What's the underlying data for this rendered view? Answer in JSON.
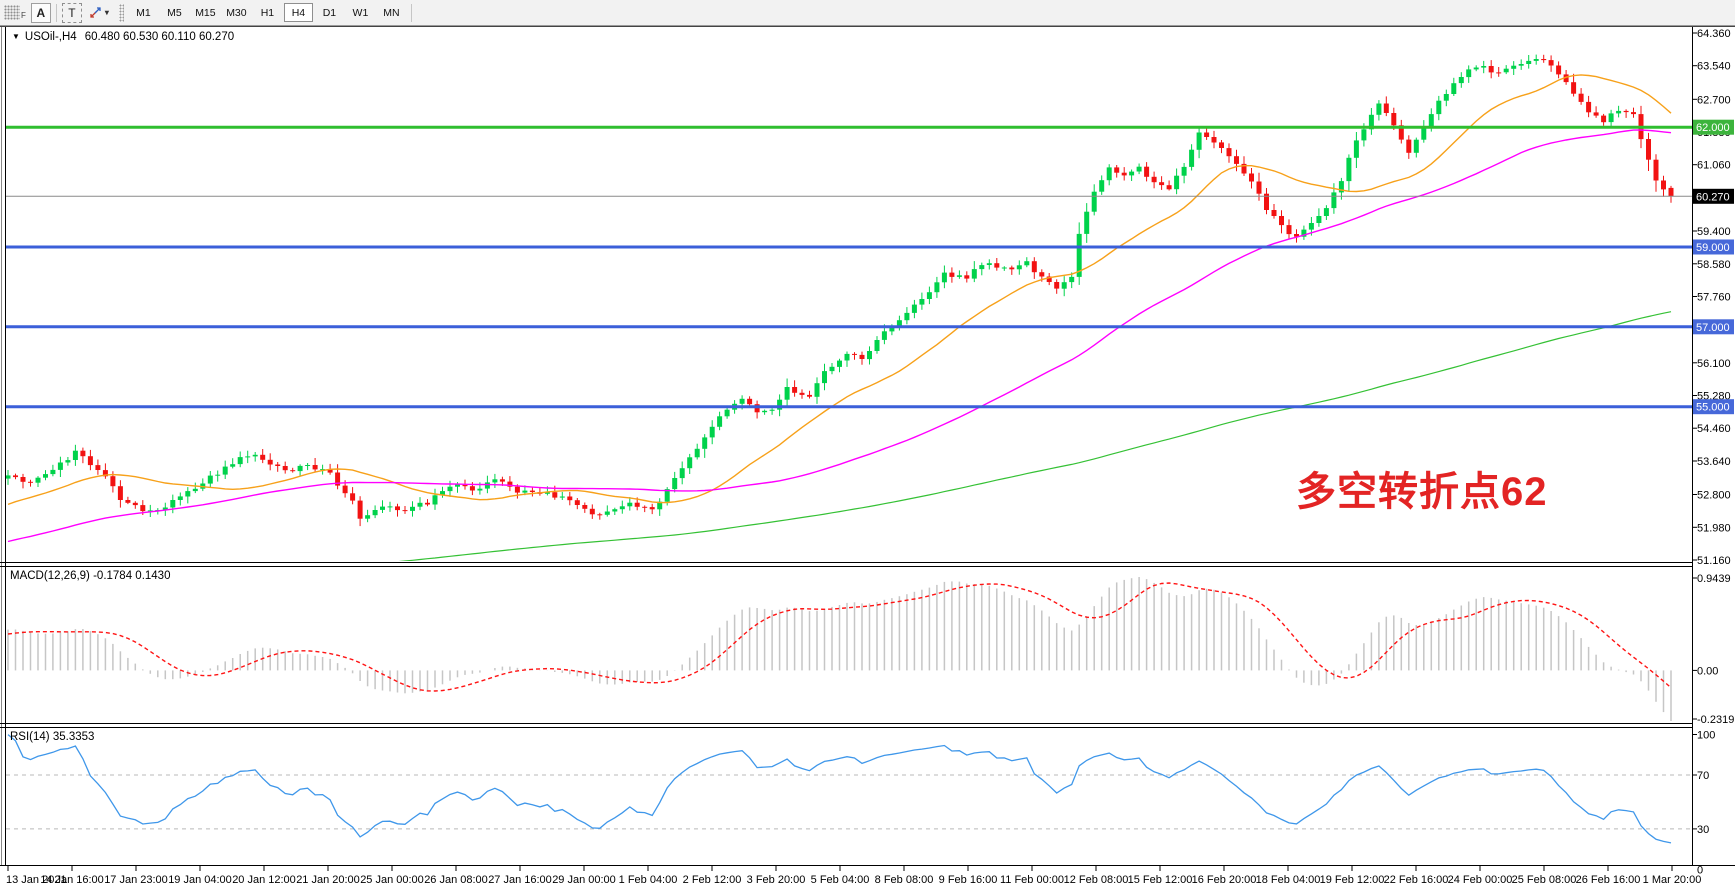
{
  "window": {
    "app": "MetaTrader chart"
  },
  "toolbar": {
    "handle_label": "F",
    "tools": [
      {
        "label": "A",
        "name": "annotation-text-tool"
      },
      {
        "label": "T",
        "name": "text-box-tool"
      }
    ],
    "dropdown_caret": "▾",
    "timeframes": [
      "M1",
      "M5",
      "M15",
      "M30",
      "H1",
      "H4",
      "D1",
      "W1",
      "MN"
    ],
    "active_timeframe": "H4"
  },
  "chart": {
    "collapse_icon": "▼",
    "symbol_period": "USOil-,H4",
    "ohlc_text": "60.480 60.530 60.110 60.270",
    "annotation": "多空转折点62",
    "annotation_color": "#e32424"
  },
  "axis": {
    "price_tick_labels": [
      "64.360",
      "63.540",
      "62.700",
      "61.880",
      "61.060",
      "60.240",
      "59.400",
      "58.580",
      "57.760",
      "56.940",
      "56.100",
      "55.280",
      "54.460",
      "53.640",
      "52.800",
      "51.980",
      "51.160"
    ],
    "badges": [
      {
        "label": "62.000",
        "value": 62.0,
        "color": "#3cb43c"
      },
      {
        "label": "60.270",
        "value": 60.27,
        "color": "#000000"
      },
      {
        "label": "59.000",
        "value": 59.0,
        "color": "#4668d9"
      },
      {
        "label": "57.000",
        "value": 57.0,
        "color": "#4668d9"
      },
      {
        "label": "55.000",
        "value": 55.0,
        "color": "#4668d9"
      }
    ]
  },
  "macd": {
    "name": "MACD(12,26,9)",
    "values": "-0.1784 0.1430",
    "axis_labels": [
      "0.9439",
      "0.00",
      "-0.2319"
    ]
  },
  "rsi": {
    "name": "RSI(14)",
    "value": "35.3353",
    "axis_labels": [
      "100",
      "70",
      "30",
      "0"
    ]
  },
  "chart_data": {
    "type": "candlestick",
    "symbol": "USOil-",
    "timeframe": "H4",
    "title": "USOil-,H4",
    "ohlc_last": {
      "open": 60.48,
      "high": 60.53,
      "low": 60.11,
      "close": 60.27
    },
    "current_price": 60.27,
    "price_range": [
      51.16,
      64.36
    ],
    "y_axis_ticks": [
      64.36,
      63.54,
      62.7,
      61.88,
      61.06,
      60.24,
      59.4,
      58.58,
      57.76,
      56.94,
      56.1,
      55.28,
      54.46,
      53.64,
      52.8,
      51.98,
      51.16
    ],
    "x_axis_labels": [
      "13 Jan 2021",
      "14 Jan 16:00",
      "17 Jan 23:00",
      "19 Jan 04:00",
      "20 Jan 12:00",
      "21 Jan 20:00",
      "25 Jan 00:00",
      "26 Jan 08:00",
      "27 Jan 16:00",
      "29 Jan 00:00",
      "1 Feb 04:00",
      "2 Feb 12:00",
      "3 Feb 20:00",
      "5 Feb 04:00",
      "8 Feb 08:00",
      "9 Feb 16:00",
      "11 Feb 00:00",
      "12 Feb 08:00",
      "15 Feb 12:00",
      "16 Feb 20:00",
      "18 Feb 04:00",
      "19 Feb 12:00",
      "22 Feb 16:00",
      "24 Feb 00:00",
      "25 Feb 08:00",
      "26 Feb 16:00",
      "1 Mar 20:00"
    ],
    "candles_count": 223,
    "seed": 20210301,
    "noise": 0.12,
    "warmup_anchors": [
      [
        -220,
        47.2
      ],
      [
        -120,
        49.3
      ],
      [
        -70,
        50.2
      ],
      [
        -25,
        51.6
      ],
      [
        -8,
        52.6
      ]
    ],
    "price_anchors": [
      [
        0,
        53.3
      ],
      [
        3,
        53.05
      ],
      [
        6,
        53.45
      ],
      [
        9,
        53.85
      ],
      [
        13,
        53.3
      ],
      [
        15,
        52.65
      ],
      [
        19,
        52.35
      ],
      [
        23,
        52.7
      ],
      [
        26,
        53.1
      ],
      [
        30,
        53.6
      ],
      [
        33,
        53.85
      ],
      [
        37,
        53.35
      ],
      [
        40,
        53.55
      ],
      [
        43,
        53.3
      ],
      [
        46,
        52.6
      ],
      [
        47,
        52.15
      ],
      [
        50,
        52.55
      ],
      [
        53,
        52.4
      ],
      [
        56,
        52.6
      ],
      [
        59,
        53.05
      ],
      [
        62,
        52.9
      ],
      [
        65,
        53.2
      ],
      [
        68,
        52.9
      ],
      [
        71,
        52.85
      ],
      [
        75,
        52.65
      ],
      [
        78,
        52.3
      ],
      [
        80,
        52.35
      ],
      [
        83,
        52.55
      ],
      [
        86,
        52.45
      ],
      [
        88,
        52.9
      ],
      [
        91,
        53.7
      ],
      [
        93,
        54.25
      ],
      [
        95,
        54.7
      ],
      [
        98,
        55.2
      ],
      [
        100,
        54.85
      ],
      [
        102,
        54.9
      ],
      [
        104,
        55.45
      ],
      [
        107,
        55.3
      ],
      [
        109,
        55.9
      ],
      [
        112,
        56.3
      ],
      [
        114,
        56.2
      ],
      [
        117,
        56.9
      ],
      [
        120,
        57.35
      ],
      [
        123,
        57.9
      ],
      [
        125,
        58.3
      ],
      [
        128,
        58.2
      ],
      [
        130,
        58.6
      ],
      [
        133,
        58.45
      ],
      [
        136,
        58.6
      ],
      [
        138,
        58.25
      ],
      [
        140,
        57.95
      ],
      [
        142,
        58.2
      ],
      [
        143,
        59.3
      ],
      [
        145,
        60.4
      ],
      [
        147,
        61.0
      ],
      [
        149,
        60.75
      ],
      [
        151,
        61.0
      ],
      [
        153,
        60.6
      ],
      [
        155,
        60.45
      ],
      [
        157,
        61.0
      ],
      [
        159,
        61.85
      ],
      [
        161,
        61.6
      ],
      [
        163,
        61.25
      ],
      [
        166,
        60.6
      ],
      [
        168,
        59.95
      ],
      [
        170,
        59.55
      ],
      [
        172,
        59.2
      ],
      [
        174,
        59.55
      ],
      [
        176,
        59.95
      ],
      [
        178,
        60.7
      ],
      [
        180,
        61.7
      ],
      [
        183,
        62.55
      ],
      [
        185,
        62.1
      ],
      [
        187,
        61.4
      ],
      [
        189,
        61.95
      ],
      [
        191,
        62.65
      ],
      [
        194,
        63.3
      ],
      [
        196,
        63.55
      ],
      [
        199,
        63.35
      ],
      [
        202,
        63.6
      ],
      [
        205,
        63.7
      ],
      [
        207,
        63.3
      ],
      [
        209,
        62.85
      ],
      [
        211,
        62.4
      ],
      [
        213,
        62.15
      ],
      [
        215,
        62.45
      ],
      [
        217,
        62.35
      ],
      [
        218,
        61.7
      ],
      [
        220,
        60.7
      ],
      [
        221,
        60.48
      ],
      [
        222,
        60.27
      ]
    ],
    "up_color": "#00d24b",
    "down_color": "#f21212",
    "moving_averages": [
      {
        "period": 20,
        "color": "#f7a11a"
      },
      {
        "period": 60,
        "color": "#ff00ff"
      },
      {
        "period": 200,
        "color": "#35c135"
      }
    ],
    "horizontal_lines": [
      {
        "price": 62.0,
        "color": "#2fbe2f",
        "width": 3
      },
      {
        "price": 60.27,
        "color": "#8a8a8a",
        "width": 1
      },
      {
        "price": 59.0,
        "color": "#3b5fd9",
        "width": 3
      },
      {
        "price": 57.0,
        "color": "#3b5fd9",
        "width": 3
      },
      {
        "price": 55.0,
        "color": "#3b5fd9",
        "width": 3
      }
    ],
    "indicators": {
      "macd": {
        "fast": 12,
        "slow": 26,
        "signal": 9,
        "hist_color": "#c6c6c6",
        "signal_color": "#ff1414",
        "shown_values": [
          -0.1784,
          0.143
        ],
        "axis": [
          0.9439,
          0.0,
          -0.2319
        ]
      },
      "rsi": {
        "period": 14,
        "color": "#3f97ea",
        "levels": [
          70,
          30
        ],
        "shown_value": 35.3353,
        "axis": [
          100,
          70,
          30,
          0
        ]
      }
    }
  }
}
